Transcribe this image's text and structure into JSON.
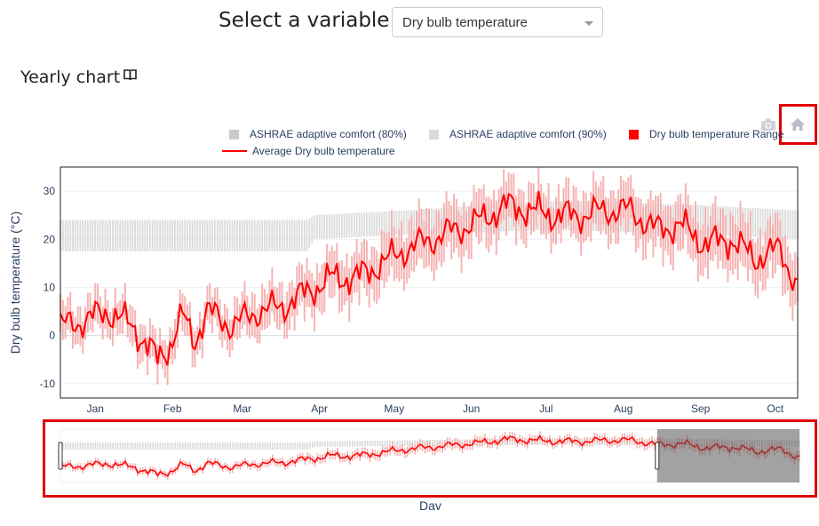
{
  "header": {
    "select_label": "Select a variable:",
    "dropdown_value": "Dry bulb temperature"
  },
  "section": {
    "title": "Yearly chart",
    "icon": "book-icon"
  },
  "modebar": {
    "icons": [
      "camera-icon",
      "home-icon"
    ]
  },
  "legend": [
    {
      "label": "ASHRAE adaptive comfort (80%)",
      "color": "#c8ccc8",
      "kind": "square"
    },
    {
      "label": "ASHRAE adaptive comfort (90%)",
      "color": "#d9dcd9",
      "kind": "square"
    },
    {
      "label": "Dry bulb temperature Range",
      "color": "#ff0000",
      "kind": "square"
    },
    {
      "label": "Average Dry bulb temperature",
      "color": "#ff0000",
      "kind": "line"
    }
  ],
  "colors": {
    "average_line": "#ff0000",
    "range_bars": "#f4a6a6",
    "comfort_band": "#d3d6d3",
    "highlight": "#e00000"
  },
  "chart_data": {
    "type": "line",
    "ylabel": "Dry bulb temperature (°C)",
    "xlabel": "Day",
    "ylim": [
      -13,
      35
    ],
    "yticks": [
      -10,
      0,
      10,
      20,
      30
    ],
    "month_ticks": [
      {
        "label": "Jan",
        "day": 15
      },
      {
        "label": "Feb",
        "day": 46
      },
      {
        "label": "Mar",
        "day": 74
      },
      {
        "label": "Apr",
        "day": 105
      },
      {
        "label": "May",
        "day": 135
      },
      {
        "label": "Jun",
        "day": 166
      },
      {
        "label": "Jul",
        "day": 196
      },
      {
        "label": "Aug",
        "day": 227
      },
      {
        "label": "Sep",
        "day": 258
      },
      {
        "label": "Oct",
        "day": 288
      }
    ],
    "xlim": [
      1,
      297
    ],
    "average_keypoints": [
      [
        1,
        2
      ],
      [
        10,
        3
      ],
      [
        20,
        5
      ],
      [
        30,
        2
      ],
      [
        40,
        -5
      ],
      [
        45,
        -2
      ],
      [
        50,
        4
      ],
      [
        55,
        -1
      ],
      [
        60,
        5
      ],
      [
        70,
        2
      ],
      [
        80,
        5
      ],
      [
        90,
        6
      ],
      [
        100,
        9
      ],
      [
        110,
        12
      ],
      [
        120,
        12
      ],
      [
        130,
        15
      ],
      [
        140,
        18
      ],
      [
        150,
        20
      ],
      [
        160,
        22
      ],
      [
        170,
        24
      ],
      [
        180,
        27
      ],
      [
        190,
        26
      ],
      [
        200,
        25
      ],
      [
        210,
        25
      ],
      [
        220,
        26
      ],
      [
        230,
        26
      ],
      [
        240,
        22
      ],
      [
        250,
        23
      ],
      [
        260,
        19
      ],
      [
        270,
        20
      ],
      [
        280,
        16
      ],
      [
        290,
        18
      ],
      [
        297,
        10
      ]
    ],
    "range_halfwidth_keypoints": [
      [
        1,
        4
      ],
      [
        60,
        4
      ],
      [
        100,
        5
      ],
      [
        150,
        6
      ],
      [
        200,
        5
      ],
      [
        260,
        6
      ],
      [
        297,
        6
      ]
    ],
    "comfort_band_keypoints": [
      [
        1,
        17.5,
        24
      ],
      [
        100,
        17.5,
        24
      ],
      [
        103,
        20,
        25
      ],
      [
        140,
        21,
        26
      ],
      [
        200,
        22,
        28
      ],
      [
        260,
        21,
        27
      ],
      [
        297,
        20,
        26
      ]
    ],
    "rangeslider": {
      "visible_start_day": 240,
      "visible_end_day": 297
    }
  },
  "axis_footer": {
    "label": "Dav"
  }
}
